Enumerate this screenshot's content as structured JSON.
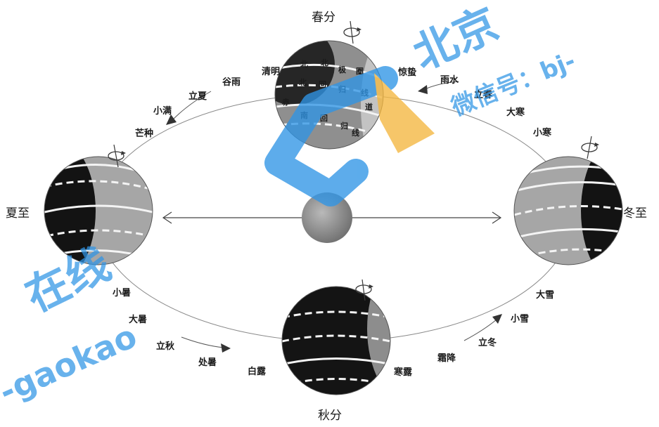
{
  "seasons": {
    "chunfen": "春分",
    "xiazhi": "夏至",
    "qiufen": "秋分",
    "dongzhi": "冬至"
  },
  "solar_terms": {
    "upper_left": [
      "清明",
      "谷雨",
      "立夏",
      "小满",
      "芒种"
    ],
    "upper_right": [
      "惊蛰",
      "雨水",
      "立春",
      "大寒",
      "小寒"
    ],
    "lower_left": [
      "小暑",
      "大暑",
      "立秋",
      "处暑",
      "白露"
    ],
    "lower_right": [
      "大雪",
      "小雪",
      "立冬",
      "霜降",
      "寒露"
    ]
  },
  "chunfen_globe_glyphs": [
    "北",
    "北",
    "极",
    "圈",
    "北",
    "回",
    "归",
    "线",
    "赤",
    "道",
    "南",
    "回",
    "归",
    "线"
  ],
  "watermark": {
    "line1": "北京",
    "line2": "微信号：bj-",
    "line3": "在线",
    "line4": "-gaokao"
  },
  "icons": {
    "rotation": "rotation-arrow-icon",
    "direction": "orbit-direction-arrow-icon",
    "axis": "double-arrow-icon"
  },
  "colors": {
    "orbit": "#8a8a8a",
    "night": "#151515",
    "day": "#a6a6a6",
    "sun": "#8f8f8f",
    "watermark_blue": "#2f95e6",
    "watermark_yellow": "#f4b73f"
  }
}
